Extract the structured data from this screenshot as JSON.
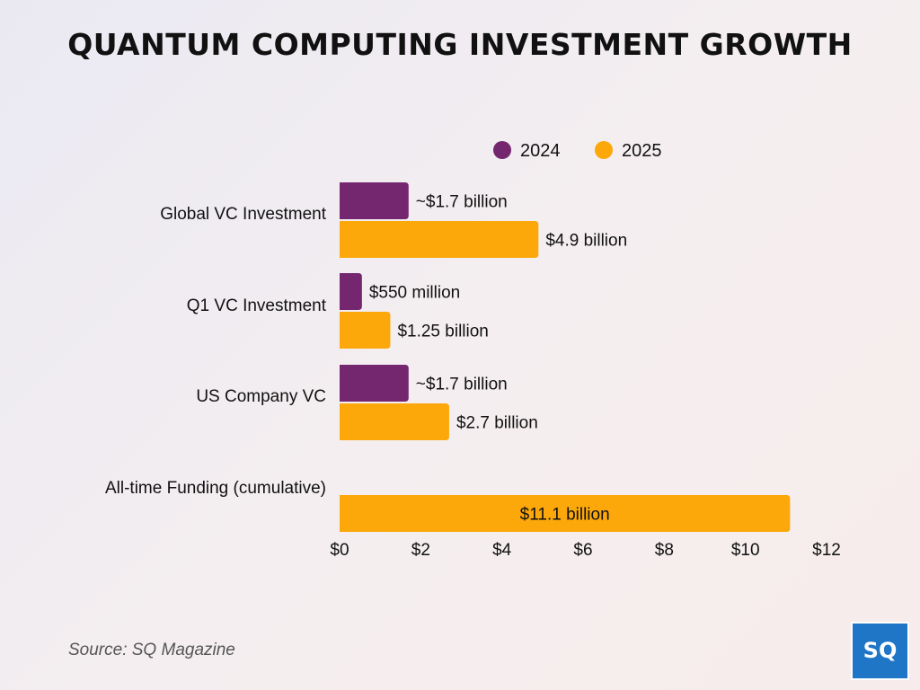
{
  "title": "QUANTUM COMPUTING INVESTMENT GROWTH",
  "source": "Source: SQ Magazine",
  "logo": {
    "text": "SQ",
    "color": "#1f75c6"
  },
  "colors": {
    "2024": "#74266f",
    "2025": "#fca80a"
  },
  "chart_data": {
    "type": "bar",
    "orientation": "horizontal",
    "title": "QUANTUM COMPUTING INVESTMENT GROWTH",
    "xlabel": "",
    "ylabel": "",
    "xlim": [
      0,
      12
    ],
    "ticks": [
      "$0",
      "$2",
      "$4",
      "$6",
      "$8",
      "$10",
      "$12"
    ],
    "tick_values": [
      0,
      2,
      4,
      6,
      8,
      10,
      12
    ],
    "legend_position": "top",
    "categories": [
      "Global VC Investment",
      "Q1 VC Investment",
      "US Company VC",
      "All-time Funding (cumulative)"
    ],
    "series": [
      {
        "name": "2024",
        "color": "#74266f",
        "values": [
          1.7,
          0.55,
          1.7,
          null
        ],
        "labels": [
          "~$1.7 billion",
          "$550 million",
          "~$1.7 billion",
          null
        ]
      },
      {
        "name": "2025",
        "color": "#fca80a",
        "values": [
          4.9,
          1.25,
          2.7,
          11.1
        ],
        "labels": [
          "$4.9 billion",
          "$1.25 billion",
          "$2.7 billion",
          "$11.1 billion"
        ]
      }
    ]
  }
}
